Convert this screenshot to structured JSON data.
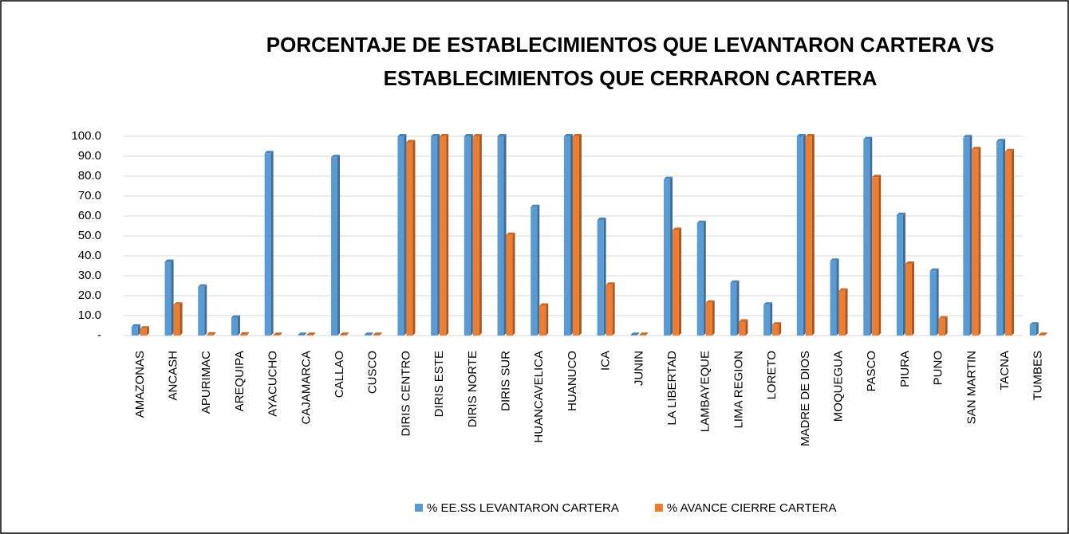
{
  "chart_data": {
    "type": "bar",
    "title": [
      "PORCENTAJE DE ESTABLECIMIENTOS QUE LEVANTARON CARTERA VS",
      "ESTABLECIMIENTOS QUE CERRARON CARTERA"
    ],
    "categories": [
      "AMAZONAS",
      "ANCASH",
      "APURIMAC",
      "AREQUIPA",
      "AYACUCHO",
      "CAJAMARCA",
      "CALLAO",
      "CUSCO",
      "DIRIS CENTRO",
      "DIRIS ESTE",
      "DIRIS NORTE",
      "DIRIS SUR",
      "HUANCAVELICA",
      "HUANUCO",
      "ICA",
      "JUNIN",
      "LA    LIBERTAD",
      "LAMBAYEQUE",
      "LIMA REGION",
      "LORETO",
      "MADRE DE DIOS",
      "MOQUEGUA",
      "PASCO",
      "PIURA",
      "PUNO",
      "SAN MARTIN",
      "TACNA",
      "TUMBES",
      null
    ],
    "series": [
      {
        "name": "% EE.SS LEVANTARON CARTERA",
        "color": "#5b9bd5",
        "values": [
          4.5,
          37,
          24.5,
          9,
          91.5,
          0.3,
          89.5,
          0.3,
          100,
          100,
          100,
          100,
          64.5,
          100,
          58,
          0.3,
          78.5,
          56.5,
          26.5,
          15.5,
          100,
          37.5,
          98.5,
          60.5,
          32.5,
          99.5,
          97.5,
          5.5,
          null
        ]
      },
      {
        "name": "% AVANCE CIERRE CARTERA",
        "color": "#ed7d31",
        "values": [
          3.5,
          15.5,
          0.5,
          0.5,
          0.3,
          0.3,
          0.3,
          0.3,
          97,
          100,
          100,
          50.5,
          15,
          100,
          25.5,
          0.3,
          53,
          16.5,
          7,
          5.5,
          100,
          22.5,
          79.5,
          36,
          8.5,
          93.5,
          92.5,
          0.3,
          null
        ]
      }
    ],
    "ylim": [
      0,
      100
    ],
    "yticks": [
      {
        "value": 0,
        "label": "-"
      },
      {
        "value": 10,
        "label": "10.0"
      },
      {
        "value": 20,
        "label": "20.0"
      },
      {
        "value": 30,
        "label": "30.0"
      },
      {
        "value": 40,
        "label": "40.0"
      },
      {
        "value": 50,
        "label": "50.0"
      },
      {
        "value": 60,
        "label": "60.0"
      },
      {
        "value": 70,
        "label": "70.0"
      },
      {
        "value": 80,
        "label": "80.0"
      },
      {
        "value": 90,
        "label": "90.0"
      },
      {
        "value": 100,
        "label": "100.0"
      }
    ],
    "grid": true,
    "legend": "bottom"
  }
}
